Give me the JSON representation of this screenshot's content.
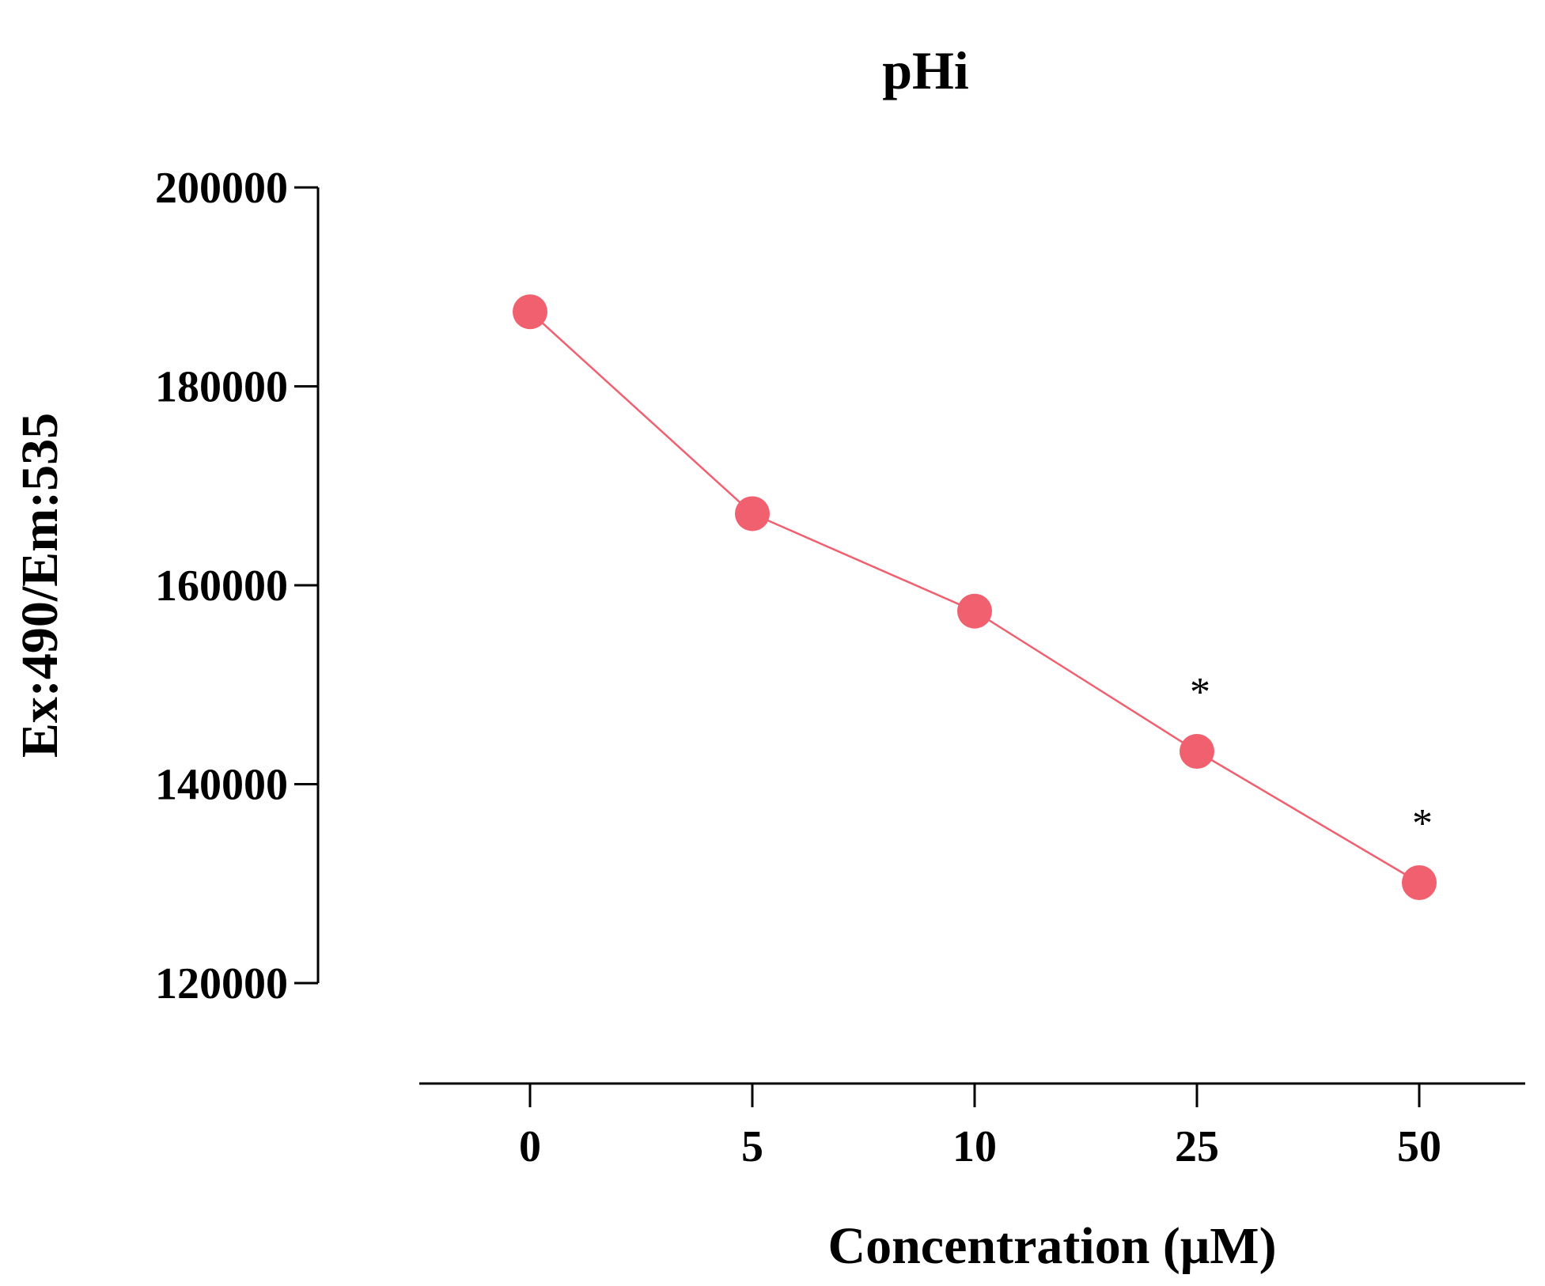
{
  "chart_data": {
    "type": "line",
    "title": "pHi",
    "xlabel": "Concentration (μM)",
    "ylabel": "Ex:490/Em:535",
    "categories": [
      "0",
      "5",
      "10",
      "25",
      "50"
    ],
    "series": [
      {
        "name": "pHi",
        "color": "#f0606f",
        "values": [
          187500,
          167200,
          157400,
          143300,
          130100
        ]
      }
    ],
    "ylim": [
      120000,
      200000
    ],
    "yticks": [
      120000,
      140000,
      160000,
      180000,
      200000
    ],
    "ytick_labels": [
      "120000",
      "140000",
      "160000",
      "180000",
      "200000"
    ],
    "annotations": [
      {
        "category": "25",
        "text": "*"
      },
      {
        "category": "50",
        "text": "*"
      }
    ],
    "grid": false,
    "legend": "none"
  }
}
